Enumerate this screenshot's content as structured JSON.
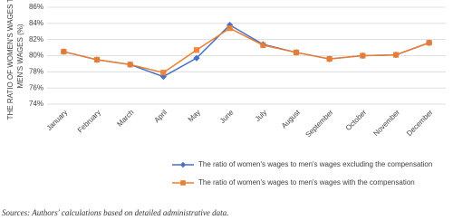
{
  "chart_data": {
    "type": "line",
    "ylabel": [
      "THE RATIO OF WOMEN'S WAGES TO",
      "MEN'S WAGES (%)"
    ],
    "categories": [
      "January",
      "February",
      "March",
      "April",
      "May",
      "June",
      "July",
      "August",
      "September",
      "October",
      "November",
      "December"
    ],
    "series": [
      {
        "name": "The ratio of women's wages to men's wages excluding the compensation",
        "color": "#4472c4",
        "marker": "diamond",
        "values": [
          80.5,
          79.5,
          78.9,
          77.4,
          79.7,
          83.8,
          81.4,
          80.4,
          79.6,
          80.0,
          80.1,
          81.6
        ]
      },
      {
        "name": "The ratio of women's wages to men's wages with the compensation",
        "color": "#ed7d31",
        "marker": "square",
        "values": [
          80.5,
          79.5,
          78.9,
          77.9,
          80.7,
          83.4,
          81.3,
          80.4,
          79.6,
          80.0,
          80.1,
          81.6
        ]
      }
    ],
    "ylim": [
      74,
      86
    ],
    "yticks": [
      {
        "value": 74,
        "label": "74%"
      },
      {
        "value": 76,
        "label": "76%"
      },
      {
        "value": 78,
        "label": "78%"
      },
      {
        "value": 80,
        "label": "80%"
      },
      {
        "value": 82,
        "label": "82%"
      },
      {
        "value": 84,
        "label": "84%"
      },
      {
        "value": 86,
        "label": "86%"
      }
    ],
    "grid": true,
    "note": "Sources: Authors' calculations based on detailed administrative data."
  }
}
